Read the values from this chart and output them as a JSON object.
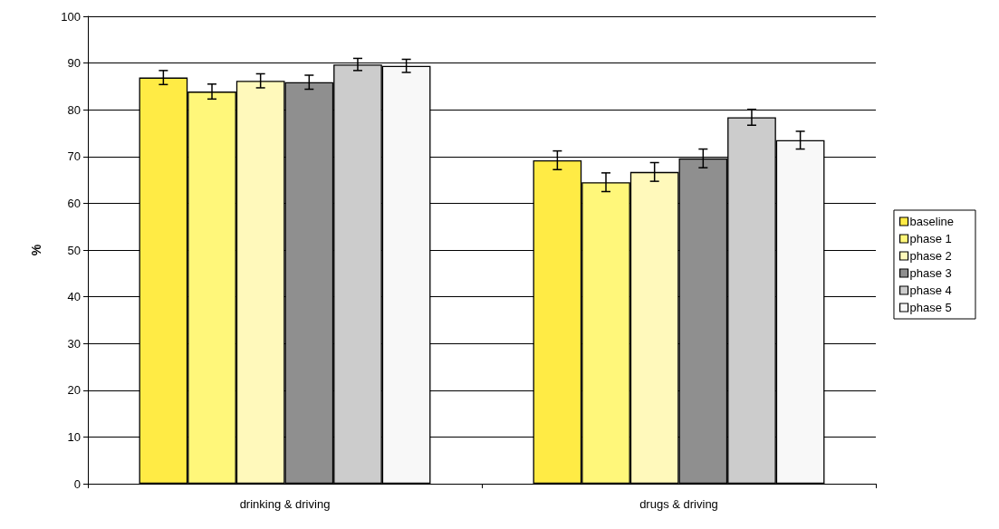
{
  "chart_data": {
    "type": "bar",
    "ylabel": "%",
    "categories": [
      "drinking & driving",
      "drugs & driving"
    ],
    "series": [
      {
        "name": "baseline",
        "color": "#ffeb45",
        "values": [
          86.9,
          69.2
        ],
        "errors": [
          1.5,
          2.0
        ]
      },
      {
        "name": "phase 1",
        "color": "#fff77a",
        "values": [
          83.9,
          64.5
        ],
        "errors": [
          1.6,
          2.0
        ]
      },
      {
        "name": "phase 2",
        "color": "#fff9bb",
        "values": [
          86.2,
          66.7
        ],
        "errors": [
          1.5,
          2.0
        ]
      },
      {
        "name": "phase 3",
        "color": "#8f8f8f",
        "values": [
          85.9,
          69.6
        ],
        "errors": [
          1.5,
          2.0
        ]
      },
      {
        "name": "phase 4",
        "color": "#cccccc",
        "values": [
          89.7,
          78.4
        ],
        "errors": [
          1.3,
          1.7
        ]
      },
      {
        "name": "phase 5",
        "color": "#f8f8f8",
        "values": [
          89.4,
          73.5
        ],
        "errors": [
          1.4,
          1.9
        ]
      }
    ],
    "ylim": [
      0,
      100
    ],
    "yticks": [
      0,
      10,
      20,
      30,
      40,
      50,
      60,
      70,
      80,
      90,
      100
    ],
    "grid": "y",
    "legend": "right"
  }
}
